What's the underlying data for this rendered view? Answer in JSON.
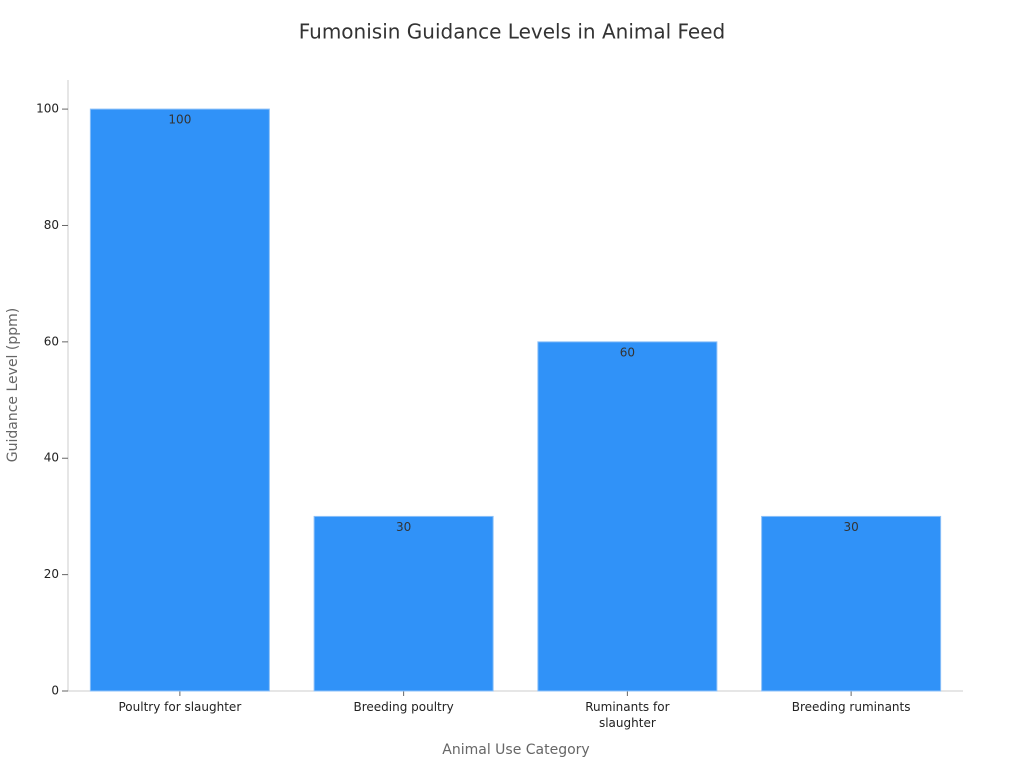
{
  "chart_data": {
    "type": "bar",
    "title": "Fumonisin Guidance Levels in Animal Feed",
    "x_label": "Animal Use Category",
    "y_label": "Guidance Level (ppm)",
    "categories": [
      "Poultry for slaughter",
      "Breeding poultry",
      "Ruminants for slaughter",
      "Breeding ruminants"
    ],
    "values": [
      100,
      30,
      60,
      30
    ],
    "color": "#3092f8",
    "ylim": [
      0,
      105
    ],
    "yticks": [
      0,
      20,
      40,
      60,
      80,
      100
    ],
    "grid": false
  }
}
